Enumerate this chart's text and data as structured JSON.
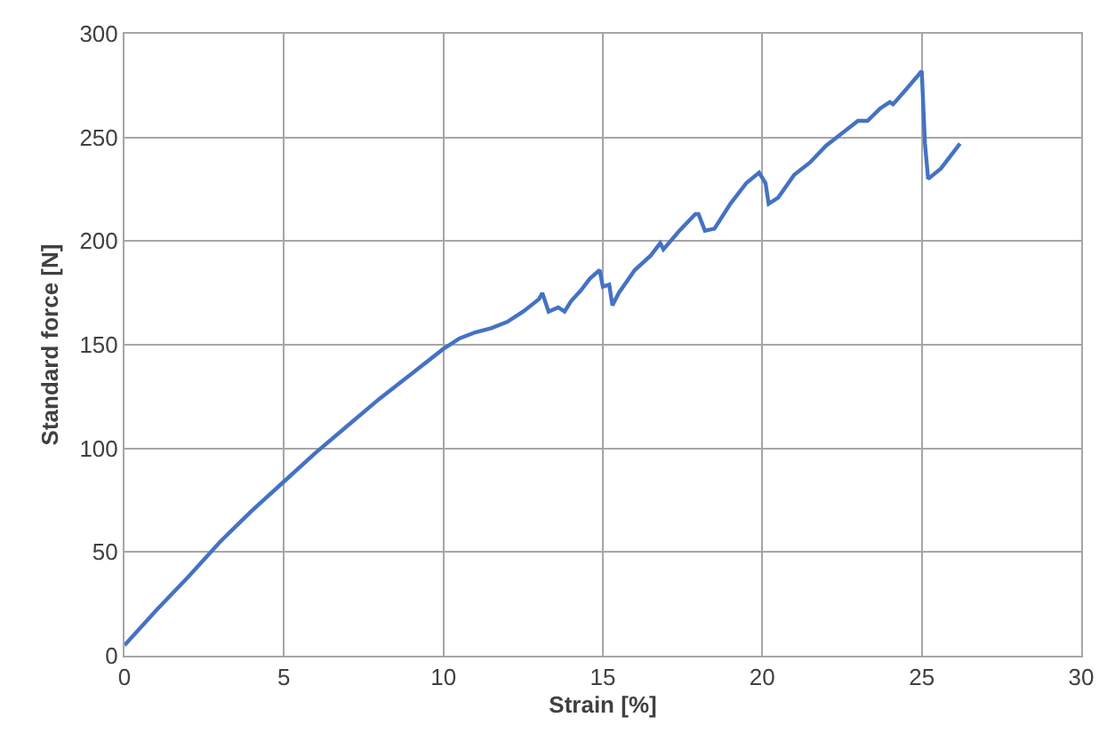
{
  "chart_data": {
    "type": "line",
    "xlabel": "Strain [%]",
    "ylabel": "Standard force [N]",
    "x": [
      0,
      1,
      2,
      3,
      4,
      5,
      6,
      7,
      8,
      9,
      10,
      10.5,
      11,
      11.5,
      12,
      12.5,
      13,
      13.1,
      13.3,
      13.6,
      13.8,
      14,
      14.3,
      14.6,
      14.9,
      15,
      15.2,
      15.3,
      15.5,
      16,
      16.5,
      16.8,
      16.9,
      17.4,
      17.9,
      18,
      18.2,
      18.5,
      19,
      19.5,
      19.9,
      20.1,
      20.2,
      20.5,
      21,
      21.5,
      22,
      22.5,
      23,
      23.3,
      23.7,
      24,
      24.1,
      24.5,
      25,
      25.1,
      25.2,
      25.6,
      26.2
    ],
    "series": [
      {
        "color": "#4472c4",
        "values": [
          5,
          22,
          38,
          55,
          70,
          84,
          98,
          111,
          124,
          136,
          148,
          153,
          156,
          158,
          161,
          166,
          172,
          175,
          166,
          168,
          166,
          171,
          176,
          182,
          186,
          178,
          179,
          169,
          175,
          186,
          193,
          199,
          196,
          205,
          213,
          213,
          205,
          206,
          218,
          228,
          233,
          228,
          218,
          221,
          232,
          238,
          246,
          252,
          258,
          258,
          264,
          267,
          266,
          273,
          282,
          247,
          230,
          235,
          247
        ]
      }
    ],
    "xlim": [
      0,
      30
    ],
    "xticks": [
      0,
      5,
      10,
      15,
      20,
      25,
      30
    ],
    "ylim": [
      0,
      300
    ],
    "yticks": [
      0,
      50,
      100,
      150,
      200,
      250,
      300
    ],
    "grid": true,
    "legend": false,
    "marker": "none",
    "line_style": "solid"
  }
}
